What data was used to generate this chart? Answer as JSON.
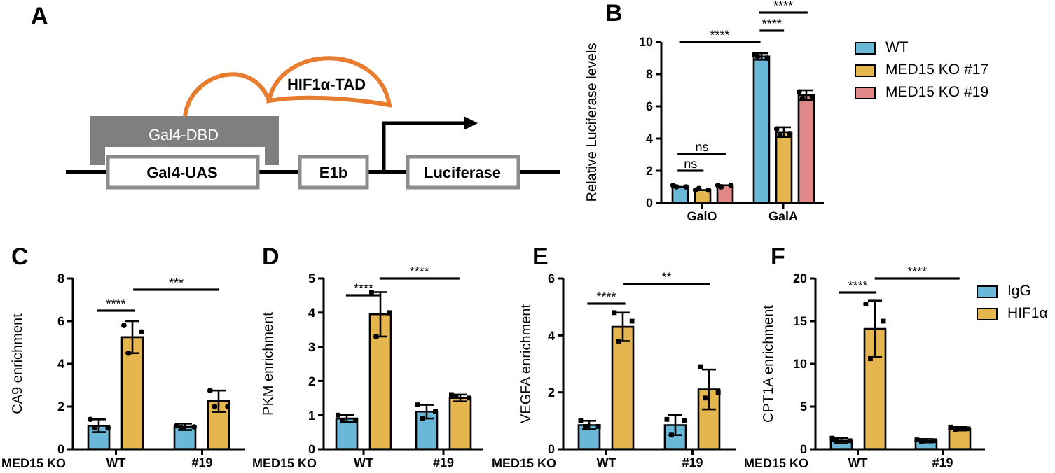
{
  "chart_data": [
    {
      "type": "other",
      "title": "A",
      "annotations": [
        "HIF1α-TAD",
        "Gal4-DBD",
        "Gal4-UAS",
        "E1b",
        "Luciferase"
      ]
    },
    {
      "type": "bar",
      "title": "B",
      "ylabel": "Relative Luciferase levels",
      "categories": [
        "GalO",
        "GalA"
      ],
      "ylim": [
        0,
        10
      ],
      "yticks": [
        0,
        2,
        4,
        6,
        8,
        10
      ],
      "legend": "top right",
      "marker": "circle",
      "series": [
        {
          "name": "WT",
          "color": "#6ab7d8",
          "values": [
            1.0,
            9.1
          ],
          "errors": [
            null,
            0.2
          ]
        },
        {
          "name": "MED15 KO #17",
          "color": "#e6b64e",
          "values": [
            0.8,
            4.4
          ],
          "errors": [
            null,
            0.3
          ]
        },
        {
          "name": "MED15 KO #19",
          "color": "#e08788",
          "values": [
            1.1,
            6.7
          ],
          "errors": [
            null,
            0.3
          ]
        },
        {
          "type": "scatter",
          "color": "#000000",
          "x": [
            "GalO",
            "GalO",
            "GalO",
            "GalA",
            "GalA",
            "GalA"
          ],
          "values": [
            1.1,
            1.0,
            1.0,
            9.2,
            9.0,
            9.1
          ]
        },
        {
          "type": "scatter",
          "color": "#000000",
          "x": [
            "GalO",
            "GalO",
            "GalO",
            "GalA",
            "GalA",
            "GalA"
          ],
          "values": [
            0.8,
            0.8,
            0.9,
            4.6,
            4.3,
            4.2
          ]
        },
        {
          "type": "scatter",
          "color": "#000000",
          "x": [
            "GalO",
            "GalO",
            "GalO",
            "GalA",
            "GalA",
            "GalA"
          ],
          "values": [
            1.1,
            1.1,
            1.0,
            6.9,
            6.6,
            6.5
          ]
        }
      ],
      "annotations": [
        "ns",
        "ns",
        "****",
        "****",
        "****"
      ]
    },
    {
      "type": "bar",
      "title": "C",
      "ylabel": "CA9 enrichment",
      "xlabel": "MED15 KO",
      "categories": [
        "WT",
        "#19"
      ],
      "ylim": [
        0,
        8
      ],
      "yticks": [
        0,
        2,
        4,
        6,
        8
      ],
      "marker": "circle",
      "series": [
        {
          "color": "#6ab7d8",
          "values": [
            1.1,
            1.05
          ],
          "errors": [
            0.3,
            0.15
          ]
        },
        {
          "color": "#e6b64e",
          "values": [
            5.25,
            2.25
          ],
          "errors": [
            0.75,
            0.5
          ]
        },
        {
          "type": "scatter",
          "color": "#000000",
          "x": [
            "WT",
            "WT",
            "WT",
            "#19",
            "#19",
            "#19"
          ],
          "values": [
            1.4,
            1.0,
            1.0,
            1.1,
            1.05,
            1.0
          ]
        },
        {
          "type": "scatter",
          "color": "#000000",
          "x": [
            "WT",
            "WT",
            "WT",
            "#19",
            "#19",
            "#19"
          ],
          "values": [
            5.8,
            5.5,
            4.5,
            2.75,
            2.0,
            2.0
          ]
        }
      ],
      "annotations": [
        "****",
        "***"
      ]
    },
    {
      "type": "bar",
      "title": "D",
      "ylabel": "PKM enrichment",
      "xlabel": "MED15 KO",
      "categories": [
        "WT",
        "#19"
      ],
      "ylim": [
        0,
        5
      ],
      "yticks": [
        0,
        1,
        2,
        3,
        4,
        5
      ],
      "marker": "square",
      "series": [
        {
          "color": "#6ab7d8",
          "values": [
            0.9,
            1.1
          ],
          "errors": [
            0.1,
            0.2
          ]
        },
        {
          "color": "#e6b64e",
          "values": [
            3.95,
            1.5
          ],
          "errors": [
            0.65,
            0.1
          ]
        },
        {
          "type": "scatter",
          "color": "#000000",
          "x": [
            "WT",
            "WT",
            "WT",
            "#19",
            "#19",
            "#19"
          ],
          "values": [
            1.0,
            0.85,
            0.85,
            1.3,
            1.1,
            0.9
          ]
        },
        {
          "type": "scatter",
          "color": "#000000",
          "x": [
            "WT",
            "WT",
            "WT",
            "#19",
            "#19",
            "#19"
          ],
          "values": [
            4.6,
            4.0,
            3.3,
            1.6,
            1.5,
            1.55
          ]
        }
      ],
      "annotations": [
        "****",
        "****"
      ]
    },
    {
      "type": "bar",
      "title": "E",
      "ylabel": "VEGFA enrichment",
      "xlabel": "MED15 KO",
      "categories": [
        "WT",
        "#19"
      ],
      "ylim": [
        0,
        6
      ],
      "yticks": [
        0,
        2,
        4,
        6
      ],
      "marker": "square",
      "series": [
        {
          "color": "#6ab7d8",
          "values": [
            0.85,
            0.85
          ],
          "errors": [
            0.15,
            0.35
          ]
        },
        {
          "color": "#e6b64e",
          "values": [
            4.3,
            2.1
          ],
          "errors": [
            0.5,
            0.7
          ]
        },
        {
          "type": "scatter",
          "color": "#000000",
          "x": [
            "WT",
            "WT",
            "WT",
            "#19",
            "#19",
            "#19"
          ],
          "values": [
            1.0,
            0.8,
            0.8,
            1.05,
            1.0,
            0.5
          ]
        },
        {
          "type": "scatter",
          "color": "#000000",
          "x": [
            "WT",
            "WT",
            "WT",
            "#19",
            "#19",
            "#19"
          ],
          "values": [
            4.8,
            4.5,
            3.8,
            2.9,
            2.0,
            1.8
          ]
        }
      ],
      "annotations": [
        "****",
        "**"
      ]
    },
    {
      "type": "bar",
      "title": "F",
      "ylabel": "CPT1A enrichment",
      "xlabel": "MED15 KO",
      "categories": [
        "WT",
        "#19"
      ],
      "ylim": [
        0,
        20
      ],
      "yticks": [
        0,
        5,
        10,
        15,
        20
      ],
      "legend": "top right",
      "marker": "square",
      "series": [
        {
          "name": "IgG",
          "color": "#6ab7d8",
          "values": [
            1.0,
            1.0
          ],
          "errors": [
            0.3,
            0.2
          ]
        },
        {
          "name": "HIF1α",
          "color": "#e6b64e",
          "values": [
            14.1,
            2.4
          ],
          "errors": [
            3.3,
            0.2
          ]
        },
        {
          "type": "scatter",
          "color": "#000000",
          "x": [
            "WT",
            "WT",
            "WT",
            "#19",
            "#19",
            "#19"
          ],
          "values": [
            1.3,
            1.0,
            0.9,
            1.1,
            1.0,
            0.9
          ]
        },
        {
          "type": "scatter",
          "color": "#000000",
          "x": [
            "WT",
            "WT",
            "WT",
            "#19",
            "#19",
            "#19"
          ],
          "values": [
            17.0,
            15.0,
            10.6,
            2.6,
            2.4,
            2.3
          ]
        }
      ],
      "annotations": [
        "****",
        "****"
      ]
    }
  ]
}
